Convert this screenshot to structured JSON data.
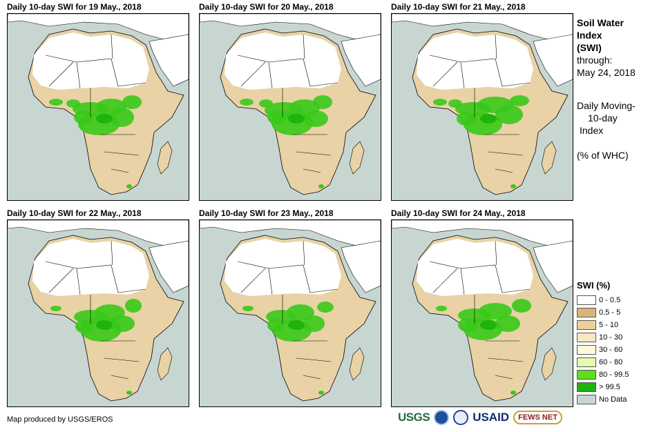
{
  "panels": [
    {
      "title": "Daily 10-day  SWI for 19 May., 2018"
    },
    {
      "title": "Daily 10-day  SWI for 20 May., 2018"
    },
    {
      "title": "Daily 10-day  SWI for 21 May., 2018"
    },
    {
      "title": "Daily 10-day  SWI for 22 May., 2018"
    },
    {
      "title": "Daily 10-day  SWI for 23 May., 2018"
    },
    {
      "title": "Daily 10-day  SWI for 24 May., 2018"
    }
  ],
  "side_text": {
    "line1": "Soil Water",
    "line2": "Index",
    "line3": "(SWI)",
    "line4": "through:",
    "line5": "May 24, 2018",
    "line6": "Daily Moving-",
    "line7": "10-day",
    "line8": "Index",
    "line9": "(% of WHC)"
  },
  "legend": {
    "title": "SWI (%)",
    "items": [
      {
        "label": "0 - 0.5",
        "color": "#ffffff"
      },
      {
        "label": "0.5 - 5",
        "color": "#d9b47a"
      },
      {
        "label": "5 - 10",
        "color": "#f0d09a"
      },
      {
        "label": "10 - 30",
        "color": "#fae6c2"
      },
      {
        "label": "30 - 60",
        "color": "#fdfadc"
      },
      {
        "label": "60 - 80",
        "color": "#e6fbae"
      },
      {
        "label": "80 - 99.5",
        "color": "#5be01a"
      },
      {
        "label": "> 99.5",
        "color": "#1fb40c"
      },
      {
        "label": "No Data",
        "color": "#c8d6d2"
      }
    ]
  },
  "credit": "Map produced by USGS/EROS",
  "logos": {
    "usgs": "USGS",
    "usaid": "USAID",
    "fews": "FEWS NET"
  },
  "colors": {
    "ocean": "#c8d6d2",
    "sahara": "#ffffff",
    "dry": "#e8d2a6",
    "green": "#39c91a",
    "dark_green": "#1fb40c"
  }
}
